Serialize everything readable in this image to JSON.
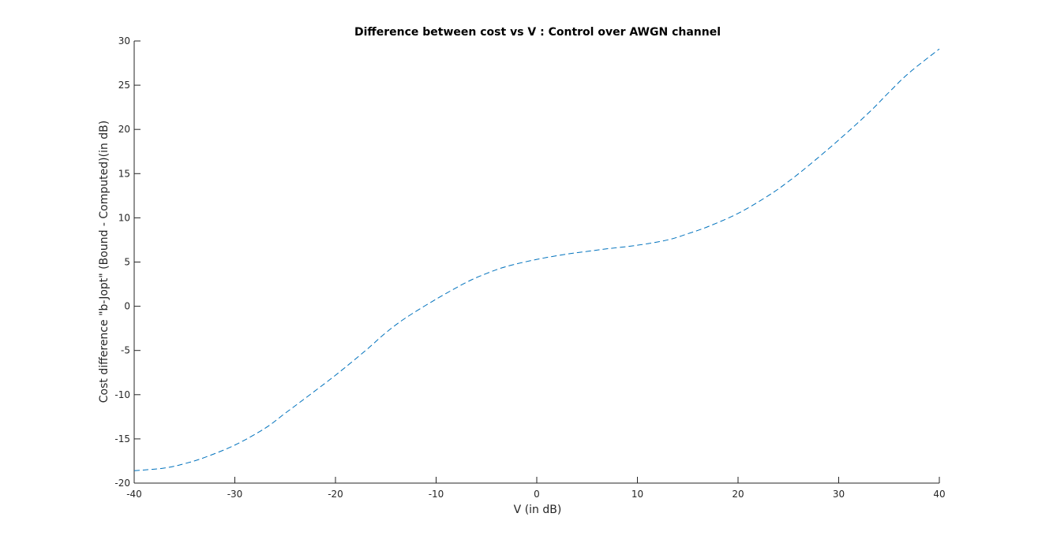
{
  "chart_data": {
    "type": "line",
    "title": "Difference between cost vs V : Control over AWGN channel",
    "xlabel": "V (in dB)",
    "ylabel": "Cost difference \"b-Jopt\" (Bound - Computed)(in dB)",
    "xlim": [
      -40,
      40
    ],
    "ylim": [
      -20,
      30
    ],
    "xticks": [
      -40,
      -30,
      -20,
      -10,
      0,
      10,
      20,
      30,
      40
    ],
    "yticks": [
      -20,
      -15,
      -10,
      -5,
      0,
      5,
      10,
      15,
      20,
      25,
      30
    ],
    "grid": false,
    "legend": null,
    "series": [
      {
        "color": "#0072BD",
        "line_style": "dashed",
        "x": [
          -40,
          -37,
          -35,
          -33,
          -30,
          -27,
          -25,
          -23,
          -20,
          -17,
          -15,
          -13,
          -10,
          -7,
          -5,
          -3,
          0,
          3,
          5,
          7,
          10,
          13,
          15,
          17,
          20,
          23,
          25,
          27,
          30,
          33,
          35,
          37,
          40
        ],
        "y": [
          -18.6,
          -18.3,
          -17.8,
          -17.1,
          -15.7,
          -13.8,
          -12.1,
          -10.4,
          -7.8,
          -5.0,
          -3.0,
          -1.3,
          0.8,
          2.7,
          3.7,
          4.5,
          5.3,
          5.9,
          6.2,
          6.5,
          6.9,
          7.5,
          8.2,
          9.0,
          10.5,
          12.5,
          14.1,
          15.9,
          18.8,
          21.9,
          24.2,
          26.4,
          29.1
        ]
      }
    ]
  }
}
